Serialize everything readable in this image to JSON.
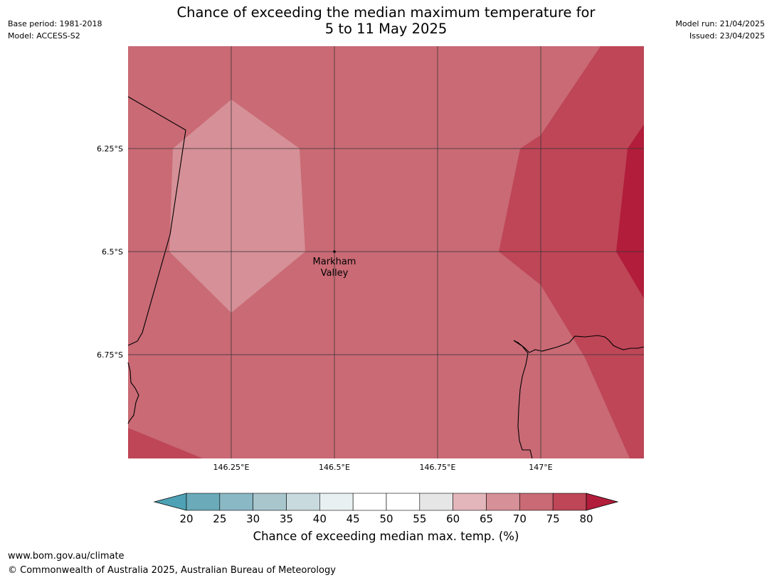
{
  "header": {
    "base_period": "Base period: 1981-2018",
    "model": "Model: ACCESS-S2",
    "model_run": "Model run: 21/04/2025",
    "issued": "Issued: 23/04/2025",
    "title_line1": "Chance of exceeding the median maximum temperature for",
    "title_line2": "5 to 11 May 2025"
  },
  "map": {
    "lat_ticks": [
      "6.25°S",
      "6.5°S",
      "6.75°S"
    ],
    "lon_ticks": [
      "146.25°E",
      "146.5°E",
      "146.75°E",
      "147°E"
    ],
    "place": {
      "name_line1": "Markham",
      "name_line2": "Valley"
    }
  },
  "colorbar": {
    "ticks": [
      "20",
      "25",
      "30",
      "35",
      "40",
      "45",
      "50",
      "55",
      "60",
      "65",
      "70",
      "75",
      "80"
    ],
    "colors": [
      "#4ea2b5",
      "#6aaab9",
      "#8ab8c5",
      "#a9c6cd",
      "#c9dadf",
      "#e9f0f2",
      "#ffffff",
      "#ffffff",
      "#e6e6e6",
      "#e3b6bb",
      "#d69097",
      "#c96a75",
      "#be4657",
      "#b11d3a"
    ],
    "label": "Chance of exceeding median max. temp. (%)"
  },
  "footer": {
    "url": "www.bom.gov.au/climate",
    "copyright": "© Commonwealth of Australia 2025, Australian Bureau of Meteorology"
  }
}
